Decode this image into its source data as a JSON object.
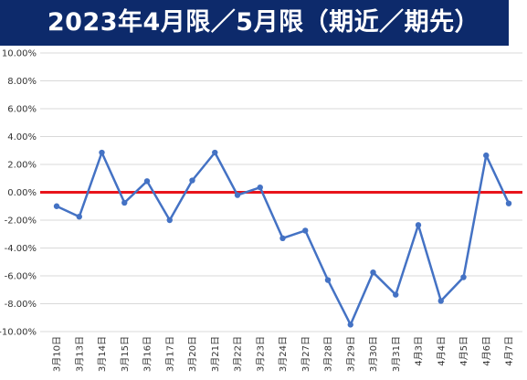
{
  "title": "2023年4月限／5月限（期近／期先）",
  "chart_data": {
    "type": "line",
    "title": "2023年4月限／5月限（期近／期先）",
    "xlabel": "",
    "ylabel": "",
    "ylim": [
      -10,
      10
    ],
    "ystep": 2,
    "ytick_format": "percent_2dp",
    "grid": true,
    "legend": "none",
    "reference_line": {
      "value": 0,
      "color": "#e8141b"
    },
    "series_color": "#4472c4",
    "categories": [
      "3月10日",
      "3月13日",
      "3月14日",
      "3月15日",
      "3月16日",
      "3月17日",
      "3月20日",
      "3月21日",
      "3月22日",
      "3月23日",
      "3月24日",
      "3月27日",
      "3月28日",
      "3月29日",
      "3月30日",
      "3月31日",
      "4月3日",
      "4月4日",
      "4月5日",
      "4月6日",
      "4月7日"
    ],
    "series": [
      {
        "values": [
          -1.0,
          -1.75,
          2.85,
          -0.75,
          0.8,
          -2.0,
          0.85,
          2.85,
          -0.2,
          0.35,
          -3.3,
          -2.75,
          -6.3,
          -9.5,
          -5.75,
          -7.35,
          -2.35,
          -7.8,
          -6.1,
          2.65,
          -0.8
        ]
      }
    ]
  }
}
